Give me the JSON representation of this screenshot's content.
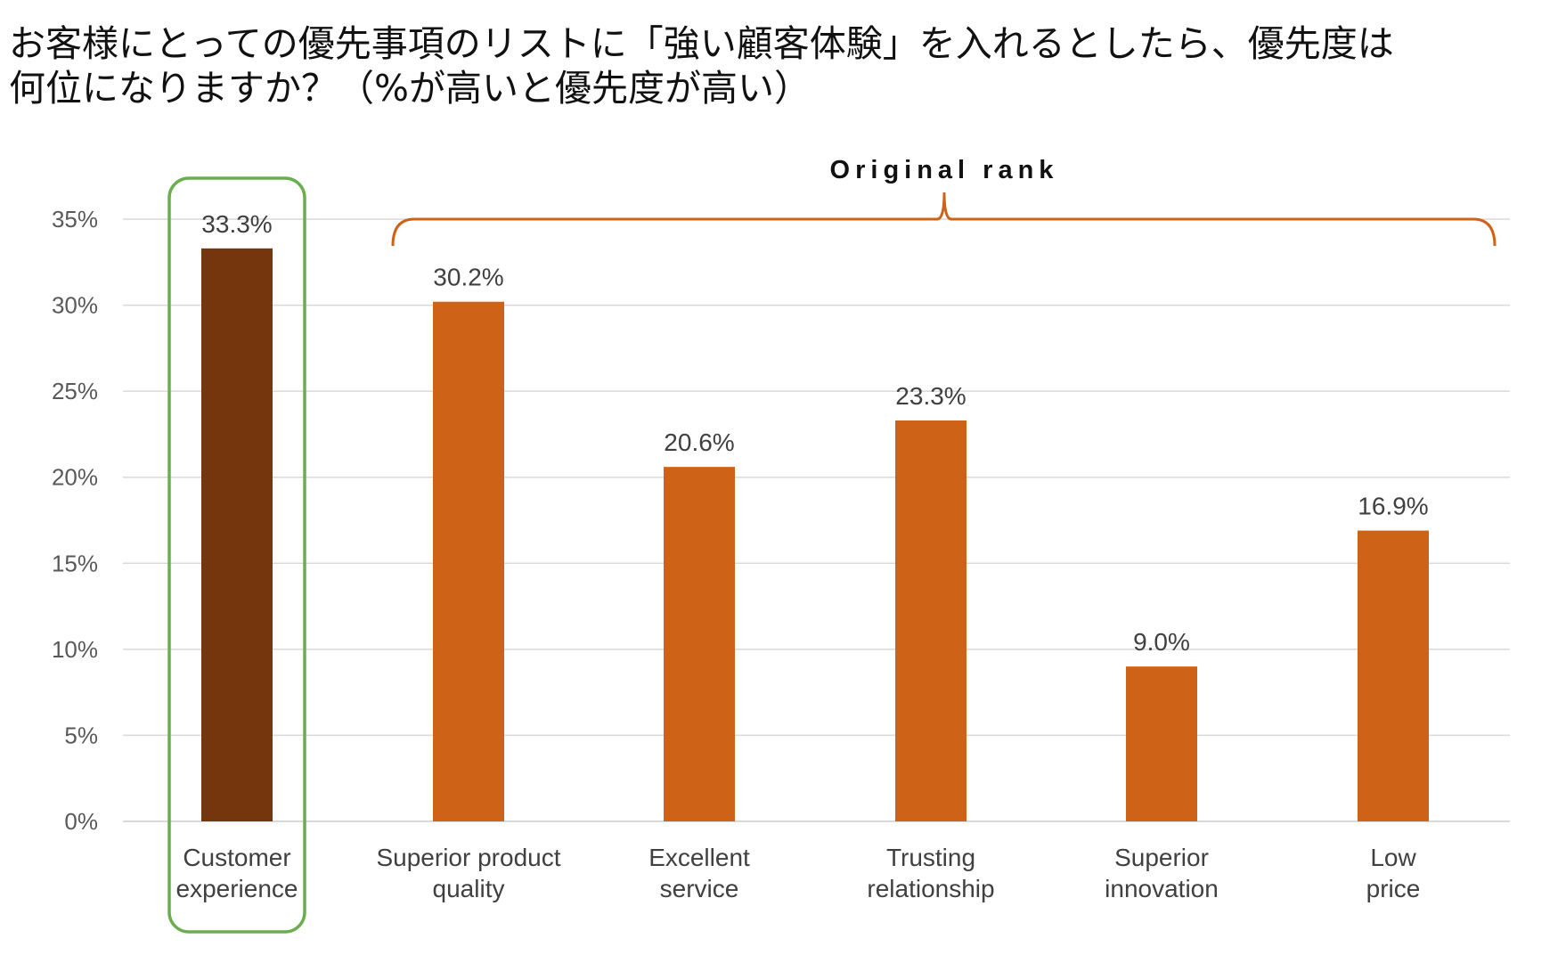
{
  "question": {
    "line1": "お客様にとっての優先事項のリストに「強い顧客体験」を入れるとしたら、優先度は",
    "line2": "何位になりますか？（%が高いと優先度が高い）"
  },
  "chart_data": {
    "type": "bar",
    "categories": [
      [
        "Customer",
        "experience"
      ],
      [
        "Superior product",
        "quality"
      ],
      [
        "Excellent",
        "service"
      ],
      [
        "Trusting",
        "relationship"
      ],
      [
        "Superior",
        "innovation"
      ],
      [
        "Low",
        "price"
      ]
    ],
    "values": [
      33.3,
      30.2,
      20.6,
      23.3,
      9.0,
      16.9
    ],
    "value_labels": [
      "33.3%",
      "30.2%",
      "20.6%",
      "23.3%",
      "9.0%",
      "16.9%"
    ],
    "y_ticks": [
      "0%",
      "5%",
      "10%",
      "15%",
      "20%",
      "25%",
      "30%",
      "35%"
    ],
    "ylim": [
      0,
      35
    ],
    "grid": true,
    "highlighted_category": "Customer experience",
    "bracket_label": "Original rank",
    "colors": {
      "highlight_bar": "#75360D",
      "bar": "#CE6216",
      "highlight_box": "#6AAE4E",
      "bracket": "#CE6216",
      "grid": "#D9D9D9"
    }
  }
}
